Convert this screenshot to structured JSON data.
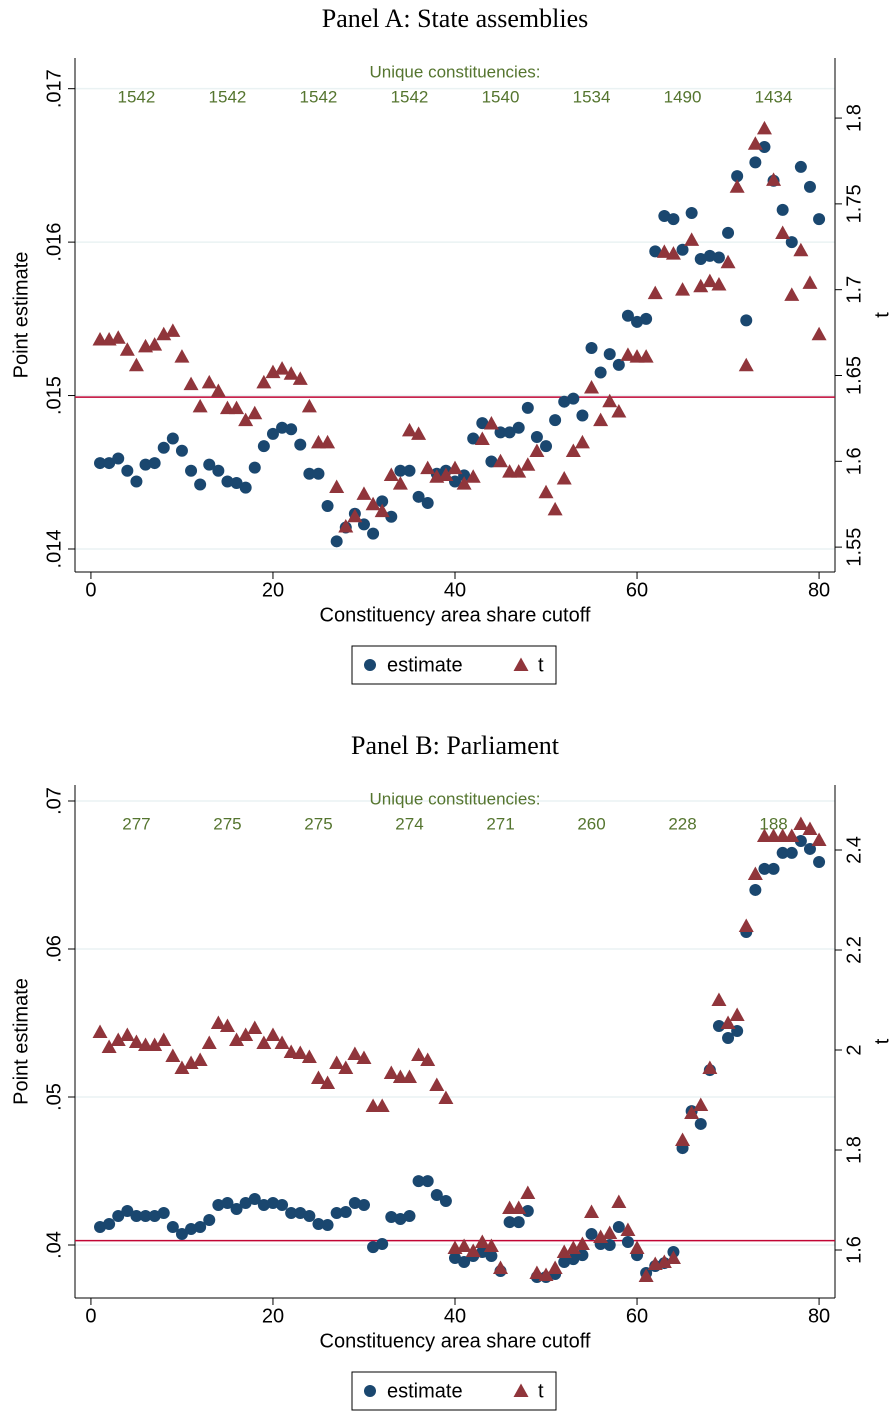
{
  "chart_data": [
    {
      "type": "scatter",
      "title": "Panel A: State assemblies",
      "x_label": "Constituency area share cutoff",
      "y_label": "Point estimate",
      "y2_label": "t",
      "x": [
        1,
        2,
        3,
        4,
        5,
        6,
        7,
        8,
        9,
        10,
        11,
        12,
        13,
        14,
        15,
        16,
        17,
        18,
        19,
        20,
        21,
        22,
        23,
        24,
        25,
        26,
        27,
        28,
        29,
        30,
        31,
        32,
        33,
        34,
        35,
        36,
        37,
        38,
        39,
        40,
        41,
        42,
        43,
        44,
        45,
        46,
        47,
        48,
        49,
        50,
        51,
        52,
        53,
        54,
        55,
        56,
        57,
        58,
        59,
        60,
        61,
        62,
        63,
        64,
        65,
        66,
        67,
        68,
        69,
        70,
        71,
        72,
        73,
        74,
        75,
        76,
        77,
        78,
        79,
        80
      ],
      "series": [
        {
          "name": "estimate",
          "color": "#1a476f",
          "marker": "circle",
          "values": [
            0.01456,
            0.01456,
            0.01459,
            0.01451,
            0.01444,
            0.01455,
            0.01456,
            0.01466,
            0.01472,
            0.01464,
            0.01451,
            0.01442,
            0.01455,
            0.01451,
            0.01444,
            0.01443,
            0.0144,
            0.01453,
            0.01467,
            0.01475,
            0.01479,
            0.01478,
            0.01468,
            0.01449,
            0.01449,
            0.01428,
            0.01405,
            0.01414,
            0.01423,
            0.01416,
            0.0141,
            0.01431,
            0.01421,
            0.01451,
            0.01451,
            0.01434,
            0.0143,
            0.01449,
            0.01451,
            0.01444,
            0.01448,
            0.01472,
            0.01482,
            0.01457,
            0.01476,
            0.01476,
            0.01479,
            0.01492,
            0.01473,
            0.01467,
            0.01484,
            0.01496,
            0.01498,
            0.01487,
            0.01531,
            0.01515,
            0.01527,
            0.0152,
            0.01552,
            0.01548,
            0.0155,
            0.01594,
            0.01617,
            0.01615,
            0.01595,
            0.01619,
            0.01589,
            0.01591,
            0.0159,
            0.01606,
            0.01643,
            0.01549,
            0.01652,
            0.01662,
            0.0164,
            0.01621,
            0.016,
            0.01649,
            0.01636,
            0.01615
          ]
        },
        {
          "name": "t",
          "color": "#90353b",
          "marker": "triangle",
          "axis": "y2",
          "values": [
            1.671,
            1.671,
            1.672,
            1.665,
            1.656,
            1.667,
            1.668,
            1.674,
            1.676,
            1.661,
            1.645,
            1.632,
            1.646,
            1.641,
            1.631,
            1.631,
            1.624,
            1.628,
            1.646,
            1.652,
            1.654,
            1.651,
            1.648,
            1.632,
            1.611,
            1.611,
            1.585,
            1.562,
            1.568,
            1.581,
            1.575,
            1.571,
            1.592,
            1.587,
            1.618,
            1.616,
            1.596,
            1.591,
            1.592,
            1.596,
            1.587,
            1.591,
            1.613,
            1.622,
            1.6,
            1.594,
            1.594,
            1.598,
            1.606,
            1.582,
            1.572,
            1.59,
            1.606,
            1.611,
            1.643,
            1.624,
            1.635,
            1.629,
            1.662,
            1.661,
            1.661,
            1.698,
            1.722,
            1.721,
            1.7,
            1.729,
            1.702,
            1.705,
            1.703,
            1.716,
            1.76,
            1.656,
            1.785,
            1.794,
            1.764,
            1.733,
            1.697,
            1.723,
            1.704,
            1.674
          ]
        }
      ],
      "xlim": [
        -1.75,
        81.75
      ],
      "xticks": [
        0,
        20,
        40,
        60,
        80
      ],
      "ylim": [
        0.01385,
        0.0172
      ],
      "yticks": [
        {
          "value": 0.014,
          "label": ".014"
        },
        {
          "value": 0.015,
          "label": ".015"
        },
        {
          "value": 0.016,
          "label": ".016"
        },
        {
          "value": 0.017,
          "label": ".017"
        }
      ],
      "y2lim": [
        1.5355,
        1.835
      ],
      "y2ticks": [
        1.55,
        1.6,
        1.65,
        1.7,
        1.75,
        1.8
      ],
      "grid": true,
      "legend_position": "bottom",
      "reference_line": {
        "value": 0.01499,
        "color": "#c10534"
      },
      "annotation": {
        "label": "Unique constituencies:",
        "color": "#55752f",
        "x": [
          5,
          15,
          25,
          35,
          45,
          55,
          65,
          75
        ],
        "values": [
          1542,
          1542,
          1542,
          1542,
          1540,
          1534,
          1490,
          1434
        ]
      }
    },
    {
      "type": "scatter",
      "title": "Panel B: Parliament",
      "x_label": "Constituency area share cutoff",
      "y_label": "Point estimate",
      "y2_label": "t",
      "x": [
        1,
        2,
        3,
        4,
        5,
        6,
        7,
        8,
        9,
        10,
        11,
        12,
        13,
        14,
        15,
        16,
        17,
        18,
        19,
        20,
        21,
        22,
        23,
        24,
        25,
        26,
        27,
        28,
        29,
        30,
        31,
        32,
        33,
        34,
        35,
        36,
        37,
        38,
        39,
        40,
        41,
        42,
        43,
        44,
        45,
        46,
        47,
        48,
        49,
        50,
        51,
        52,
        53,
        54,
        55,
        56,
        57,
        58,
        59,
        60,
        61,
        62,
        63,
        64,
        65,
        66,
        67,
        68,
        69,
        70,
        71,
        72,
        73,
        74,
        75,
        76,
        77,
        78,
        79,
        80
      ],
      "series": [
        {
          "name": "estimate",
          "color": "#1a476f",
          "marker": "circle",
          "values": [
            0.04122,
            0.04142,
            0.04196,
            0.0423,
            0.04196,
            0.04196,
            0.04196,
            0.04216,
            0.04122,
            0.04074,
            0.04108,
            0.04122,
            0.04169,
            0.0427,
            0.04284,
            0.04243,
            0.04284,
            0.04311,
            0.0427,
            0.04284,
            0.0427,
            0.04216,
            0.04216,
            0.04196,
            0.04142,
            0.04135,
            0.04216,
            0.04223,
            0.04284,
            0.0427,
            0.03986,
            0.04007,
            0.04189,
            0.04176,
            0.04196,
            0.04432,
            0.04432,
            0.04338,
            0.04297,
            0.03912,
            0.03885,
            0.03926,
            0.03953,
            0.03926,
            0.03824,
            0.04155,
            0.04155,
            0.0423,
            0.03784,
            0.03784,
            0.03804,
            0.03885,
            0.03905,
            0.03932,
            0.04074,
            0.04007,
            0.04,
            0.04122,
            0.0402,
            0.03932,
            0.03811,
            0.03858,
            0.03878,
            0.03953,
            0.04655,
            0.04905,
            0.04818,
            0.05182,
            0.0548,
            0.05399,
            0.05446,
            0.06115,
            0.06399,
            0.06541,
            0.06541,
            0.06649,
            0.06649,
            0.0673,
            0.06676,
            0.06588
          ]
        },
        {
          "name": "t",
          "color": "#90353b",
          "marker": "triangle",
          "axis": "y2",
          "values": [
            2.036,
            2.006,
            2.02,
            2.03,
            2.016,
            2.01,
            2.01,
            2.02,
            1.988,
            1.964,
            1.974,
            1.98,
            2.014,
            2.054,
            2.048,
            2.02,
            2.03,
            2.044,
            2.014,
            2.03,
            2.014,
            1.996,
            1.994,
            1.986,
            1.944,
            1.934,
            1.974,
            1.964,
            1.992,
            1.984,
            1.888,
            1.888,
            1.954,
            1.946,
            1.946,
            1.99,
            1.98,
            1.93,
            1.904,
            1.604,
            1.608,
            1.598,
            1.616,
            1.608,
            1.564,
            1.684,
            1.684,
            1.714,
            1.554,
            1.55,
            1.564,
            1.596,
            1.604,
            1.612,
            1.676,
            1.626,
            1.634,
            1.696,
            1.64,
            1.604,
            1.548,
            1.572,
            1.576,
            1.584,
            1.82,
            1.874,
            1.89,
            1.964,
            2.1,
            2.054,
            2.07,
            2.248,
            2.352,
            2.428,
            2.428,
            2.428,
            2.428,
            2.452,
            2.442,
            2.42
          ]
        }
      ],
      "xlim": [
        -1.75,
        81.75
      ],
      "xticks": [
        0,
        20,
        40,
        60,
        80
      ],
      "ylim": [
        0.03642,
        0.07108
      ],
      "yticks": [
        {
          "value": 0.04,
          "label": ".04"
        },
        {
          "value": 0.05,
          "label": ".05"
        },
        {
          "value": 0.06,
          "label": ".06"
        },
        {
          "value": 0.07,
          "label": ".07"
        }
      ],
      "y2lim": [
        1.504,
        2.53
      ],
      "y2ticks": [
        1.6,
        1.8,
        2,
        2.2,
        2.4
      ],
      "grid": true,
      "legend_position": "bottom",
      "reference_line": {
        "value": 0.0403,
        "color": "#c10534"
      },
      "annotation": {
        "label": "Unique constituencies:",
        "color": "#55752f",
        "x": [
          5,
          15,
          25,
          35,
          45,
          55,
          65,
          75
        ],
        "values": [
          277,
          275,
          275,
          274,
          271,
          260,
          228,
          188
        ]
      }
    }
  ]
}
